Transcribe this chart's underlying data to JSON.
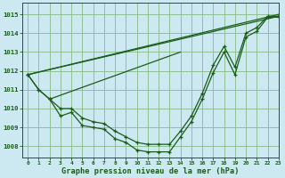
{
  "background_color": "#cce8f0",
  "grid_color": "#88bb88",
  "line_color": "#1a5c1a",
  "title": "Graphe pression niveau de la mer (hPa)",
  "xlim": [
    -0.5,
    23
  ],
  "ylim": [
    1007.4,
    1015.6
  ],
  "yticks": [
    1008,
    1009,
    1010,
    1011,
    1012,
    1013,
    1014,
    1015
  ],
  "xticks": [
    0,
    1,
    2,
    3,
    4,
    5,
    6,
    7,
    8,
    9,
    10,
    11,
    12,
    13,
    14,
    15,
    16,
    17,
    18,
    19,
    20,
    21,
    22,
    23
  ],
  "line_no_marker_1": {
    "x": [
      0,
      23
    ],
    "y": [
      1011.8,
      1015.0
    ]
  },
  "line_no_marker_2": {
    "x": [
      0,
      23
    ],
    "y": [
      1011.8,
      1014.9
    ]
  },
  "line_no_marker_3": {
    "x": [
      2,
      14
    ],
    "y": [
      1010.5,
      1013.0
    ]
  },
  "series_main": {
    "x": [
      0,
      1,
      2,
      3,
      4,
      5,
      6,
      7,
      8,
      9,
      10,
      11,
      12,
      13,
      14,
      15,
      16,
      17,
      18,
      19,
      20,
      21,
      22,
      23
    ],
    "y": [
      1011.8,
      1011.0,
      1010.5,
      1009.6,
      1009.8,
      1009.1,
      1009.0,
      1008.9,
      1008.4,
      1008.2,
      1007.8,
      1007.7,
      1007.7,
      1007.7,
      1008.5,
      1009.3,
      1010.5,
      1011.9,
      1013.0,
      1011.8,
      1013.8,
      1014.1,
      1014.85,
      1014.85
    ]
  },
  "series_upper": {
    "x": [
      0,
      1,
      2,
      3,
      4,
      5,
      6,
      7,
      8,
      9,
      10,
      11,
      12,
      13,
      14,
      15,
      16,
      17,
      18,
      19,
      20,
      21,
      22,
      23
    ],
    "y": [
      1011.8,
      1011.0,
      1010.5,
      1010.0,
      1010.0,
      1009.5,
      1009.3,
      1009.2,
      1008.8,
      1008.5,
      1008.2,
      1008.1,
      1008.1,
      1008.1,
      1008.8,
      1009.6,
      1010.8,
      1012.3,
      1013.3,
      1012.2,
      1014.0,
      1014.3,
      1014.9,
      1014.9
    ]
  }
}
